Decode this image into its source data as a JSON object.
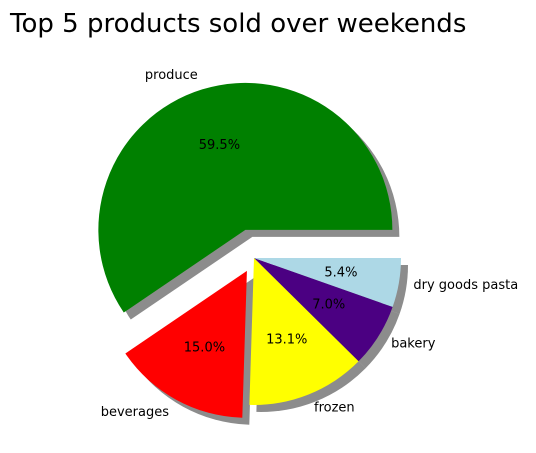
{
  "chart_data": {
    "type": "pie",
    "title": "Top 5 products sold over weekends",
    "categories": [
      "produce",
      "beverages",
      "frozen",
      "bakery",
      "dry goods pasta"
    ],
    "values": [
      59.5,
      15.0,
      13.1,
      7.0,
      5.4
    ],
    "percent_labels": [
      "59.5%",
      "15.0%",
      "13.1%",
      "7.0%",
      "5.4%"
    ],
    "colors": [
      "#008000",
      "#ff0000",
      "#ffff00",
      "#4b0082",
      "#add8e6"
    ],
    "explode": [
      0.2,
      0.1,
      0,
      0,
      0
    ],
    "start_angle_deg": 0,
    "direction": "counterclockwise",
    "shadow": true,
    "legend": "none"
  }
}
